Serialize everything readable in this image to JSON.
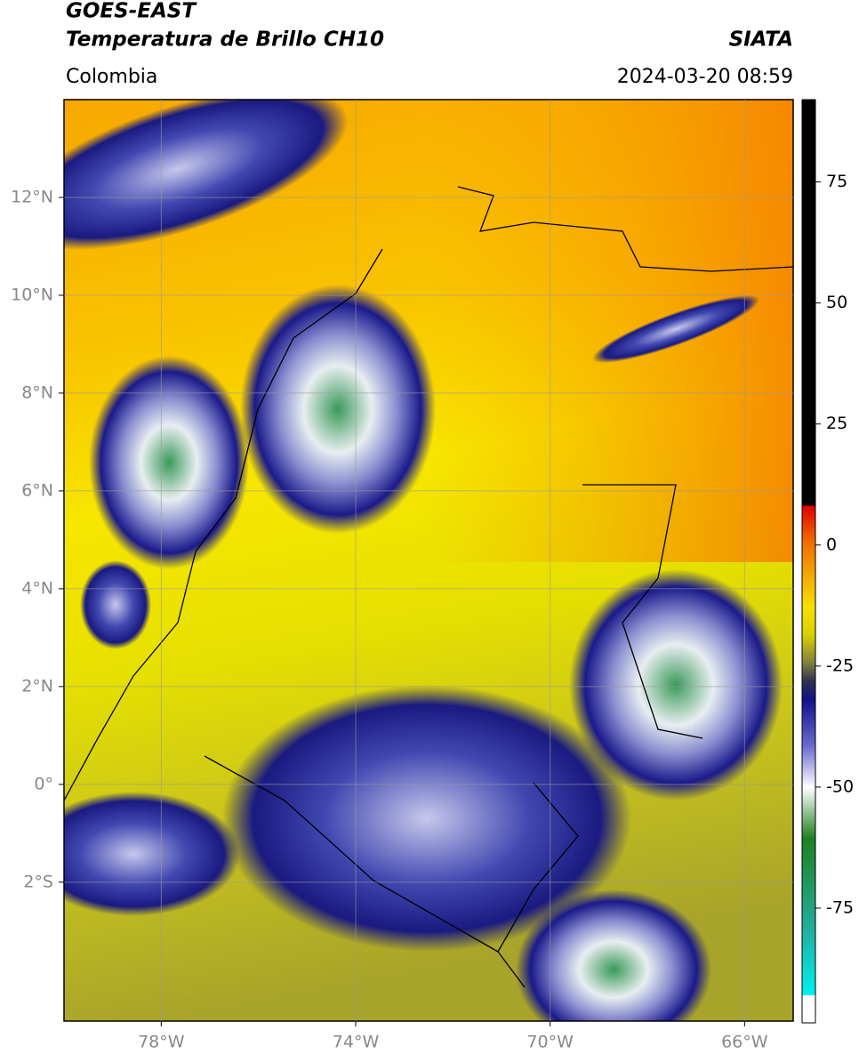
{
  "header": {
    "title": "GOES-EAST",
    "subtitle": "Temperatura de Brillo CH10",
    "source": "SIATA",
    "region": "Colombia",
    "datetime": "2024-03-20 08:59"
  },
  "map": {
    "xlim": [
      -80,
      -65
    ],
    "ylim": [
      -4.84,
      14
    ],
    "xticks": [
      {
        "value": -78,
        "label": "78°W"
      },
      {
        "value": -74,
        "label": "74°W"
      },
      {
        "value": -70,
        "label": "70°W"
      },
      {
        "value": -66,
        "label": "66°W"
      }
    ],
    "yticks": [
      {
        "value": 12,
        "label": "12°N"
      },
      {
        "value": 10,
        "label": "10°N"
      },
      {
        "value": 8,
        "label": "8°N"
      },
      {
        "value": 6,
        "label": "6°N"
      },
      {
        "value": 4,
        "label": "4°N"
      },
      {
        "value": 2,
        "label": "2°N"
      },
      {
        "value": 0,
        "label": "0°"
      },
      {
        "value": -2,
        "label": "2°S"
      }
    ],
    "grid": true
  },
  "colorbar": {
    "lim": [
      -98.7,
      92
    ],
    "ticks": [
      75,
      50,
      25,
      0,
      -25,
      -50,
      -75
    ]
  }
}
